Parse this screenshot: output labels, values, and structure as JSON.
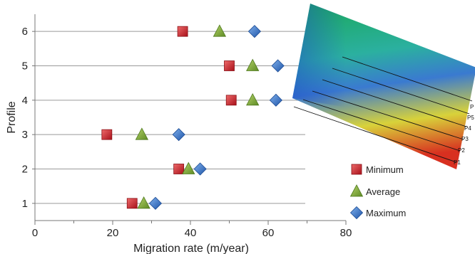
{
  "chart_data": {
    "type": "scatter",
    "title": "",
    "xlabel": "Migration rate (m/year)",
    "ylabel": "Profile",
    "xlim": [
      0,
      80
    ],
    "ylim": [
      0.5,
      6.5
    ],
    "x_ticks": [
      "0",
      "20",
      "40",
      "60",
      "80"
    ],
    "y_ticks": [
      "1",
      "2",
      "3",
      "4",
      "5",
      "6"
    ],
    "grid": "horizontal",
    "legend_position": "bottom-right",
    "series": [
      {
        "name": "Minimum",
        "marker": "square",
        "color": "#c8202a",
        "points": [
          [
            25,
            1
          ],
          [
            37,
            2
          ],
          [
            18.5,
            3
          ],
          [
            50.5,
            4
          ],
          [
            50,
            5
          ],
          [
            38,
            6
          ]
        ]
      },
      {
        "name": "Average",
        "marker": "triangle",
        "color": "#7aa33a",
        "points": [
          [
            28,
            1
          ],
          [
            39.5,
            2
          ],
          [
            27.5,
            3
          ],
          [
            56,
            4
          ],
          [
            56,
            5
          ],
          [
            47.5,
            6
          ]
        ]
      },
      {
        "name": "Maximum",
        "marker": "diamond",
        "color": "#2f6fc4",
        "points": [
          [
            31,
            1
          ],
          [
            42.5,
            2
          ],
          [
            37,
            3
          ],
          [
            62,
            4
          ],
          [
            62.5,
            5
          ],
          [
            56.5,
            6
          ]
        ]
      }
    ]
  },
  "inset": {
    "description_icon": "bathymetry-map-image",
    "profile_labels": [
      "P1",
      "P2",
      "P3",
      "P4",
      "P5",
      "P"
    ]
  }
}
